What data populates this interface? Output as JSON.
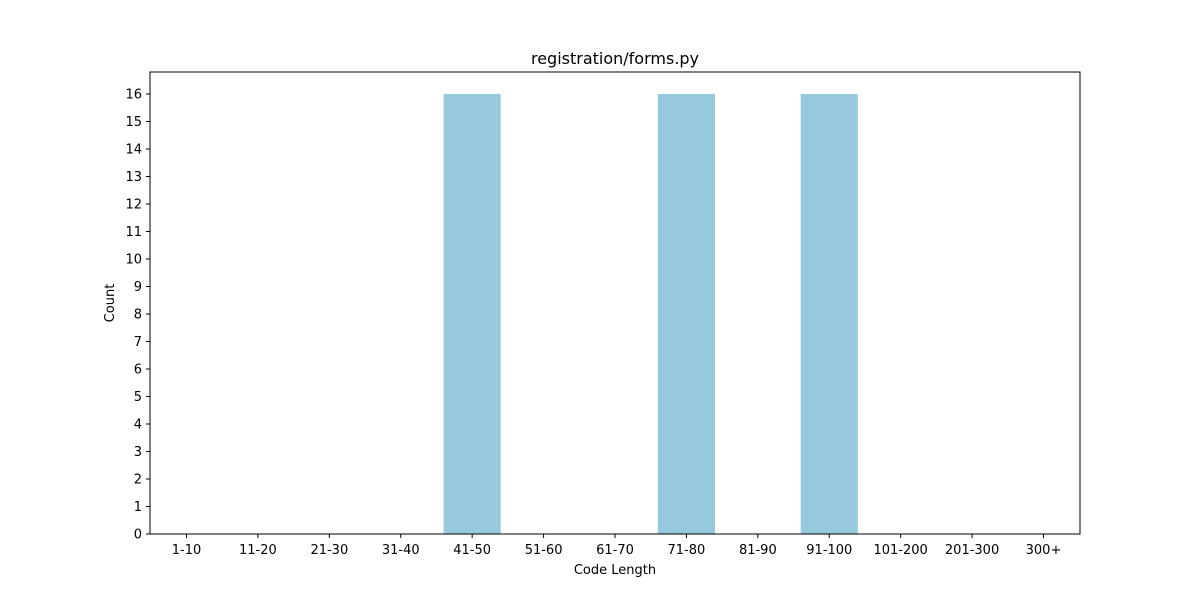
{
  "chart_data": {
    "type": "bar",
    "title": "registration/forms.py",
    "xlabel": "Code Length",
    "ylabel": "Count",
    "categories": [
      "1-10",
      "11-20",
      "21-30",
      "31-40",
      "41-50",
      "51-60",
      "61-70",
      "71-80",
      "81-90",
      "91-100",
      "101-200",
      "201-300",
      "300+"
    ],
    "values": [
      0,
      0,
      0,
      0,
      16,
      0,
      0,
      16,
      0,
      16,
      0,
      0,
      0
    ],
    "yticks": [
      0,
      1,
      2,
      3,
      4,
      5,
      6,
      7,
      8,
      9,
      10,
      11,
      12,
      13,
      14,
      15,
      16
    ],
    "ylim": [
      0,
      16.8
    ],
    "grid": false,
    "legend": "none",
    "colors": {
      "bar": "#96c9dc",
      "axes": "#000000",
      "background": "#ffffff"
    }
  }
}
